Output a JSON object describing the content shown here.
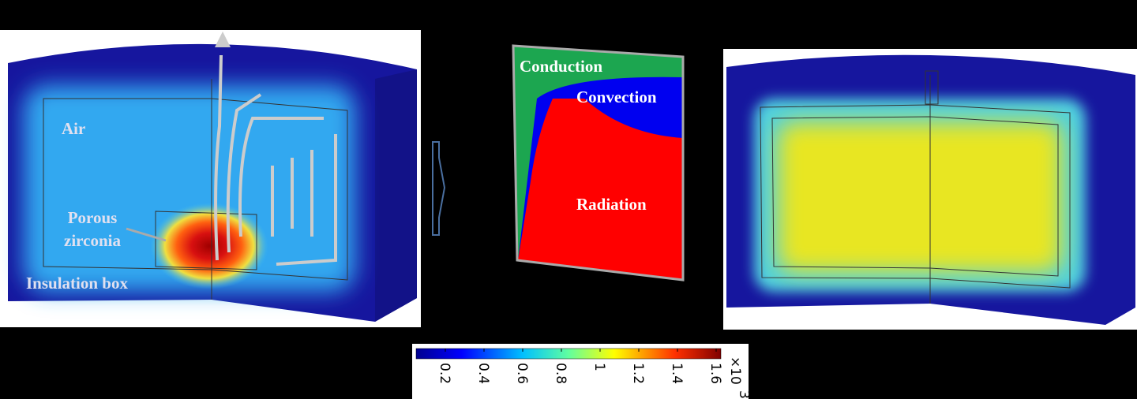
{
  "left_panel": {
    "labels": {
      "air": "Air",
      "porous": "Porous",
      "zirconia": "zirconia",
      "insulation": "Insulation box"
    }
  },
  "middle_panel": {
    "labels": {
      "conduction": "Conduction",
      "convection": "Convection",
      "radiation": "Radiation"
    }
  },
  "colorbar": {
    "ticks": [
      "0.2",
      "0.4",
      "0.6",
      "0.8",
      "1",
      "1.2",
      "1.4",
      "1.6"
    ],
    "multiplier": "×10",
    "exponent": "3"
  }
}
